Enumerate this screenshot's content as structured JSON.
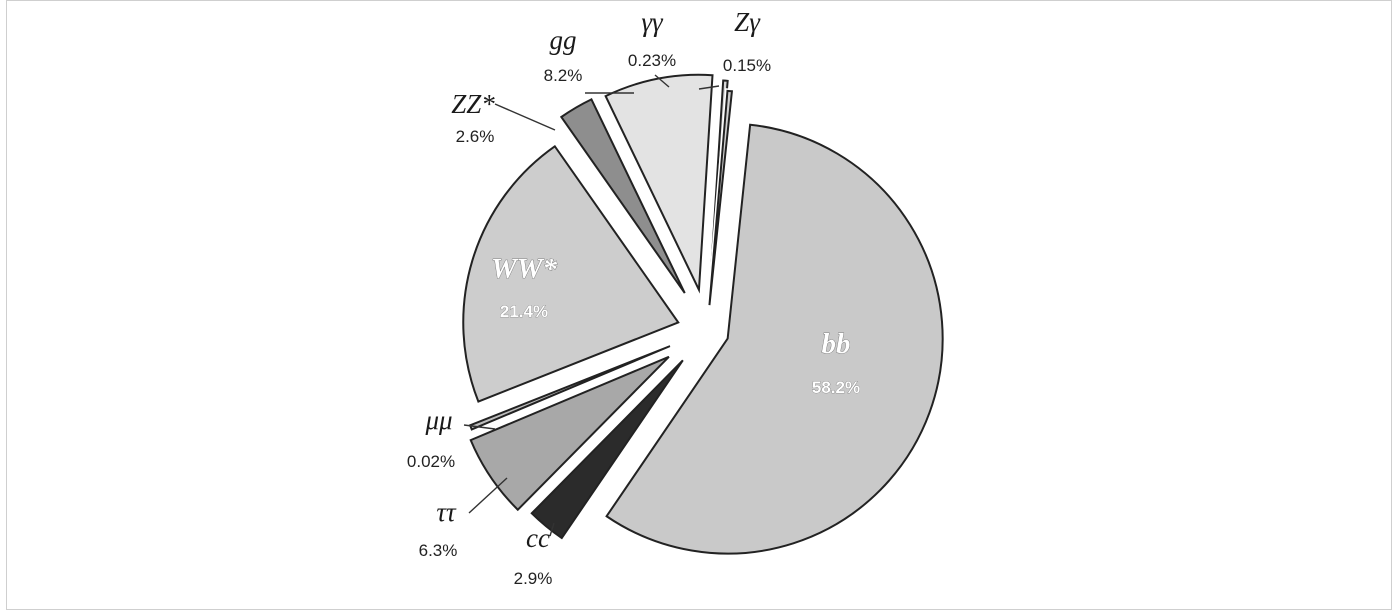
{
  "chart_data": {
    "type": "pie",
    "title": "",
    "exploded": true,
    "slices": [
      {
        "name": "bb",
        "value": 58.2,
        "label_pct": "58.2%",
        "color": "#c9c9c9",
        "label_inside": true
      },
      {
        "name": "cc",
        "value": 2.9,
        "label_pct": "2.9%",
        "color": "#2b2b2b",
        "label_inside": false
      },
      {
        "name": "ττ",
        "value": 6.3,
        "label_pct": "6.3%",
        "color": "#a8a8a8",
        "label_inside": false
      },
      {
        "name": "μμ",
        "value": 0.02,
        "label_pct": "0.02%",
        "color": "#bdbdbd",
        "label_inside": false
      },
      {
        "name": "WW*",
        "value": 21.4,
        "label_pct": "21.4%",
        "color": "#cdcdcd",
        "label_inside": true
      },
      {
        "name": "ZZ*",
        "value": 2.6,
        "label_pct": "2.6%",
        "color": "#8e8e8e",
        "label_inside": false
      },
      {
        "name": "gg",
        "value": 8.2,
        "label_pct": "8.2%",
        "color": "#e3e3e3",
        "label_inside": false
      },
      {
        "name": "γγ",
        "value": 0.23,
        "label_pct": "0.23%",
        "color": "#d6d6d6",
        "label_inside": false
      },
      {
        "name": "Zγ",
        "value": 0.15,
        "label_pct": "0.15%",
        "color": "#d0d0d0",
        "label_inside": false
      }
    ]
  }
}
